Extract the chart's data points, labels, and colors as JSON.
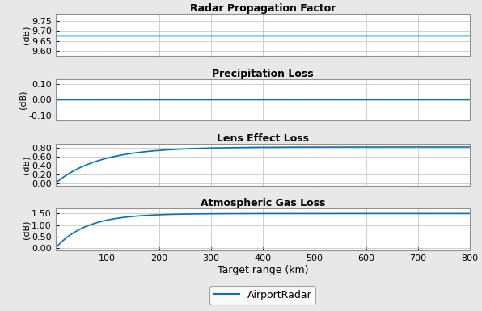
{
  "title1": "Radar Propagation Factor",
  "title2": "Precipitation Loss",
  "title3": "Lens Effect Loss",
  "title4": "Atmospheric Gas Loss",
  "xlabel": "Target range (km)",
  "ylabel": "(dB)",
  "legend_label": "AirportRadar",
  "xmin": 0,
  "xmax": 800,
  "line_color": "#0072BD",
  "background_color": "#E8E8E8",
  "axes_bg_color": "#FFFFFF",
  "grid_color": "#C8C8C8",
  "subplot1_ylim": [
    9.575,
    9.785
  ],
  "subplot1_yticks": [
    9.6,
    9.65,
    9.7,
    9.75
  ],
  "subplot2_ylim": [
    -0.135,
    0.135
  ],
  "subplot2_yticks": [
    -0.1,
    0.0,
    0.1
  ],
  "subplot3_ylim": [
    -0.055,
    0.895
  ],
  "subplot3_yticks": [
    0.0,
    0.2,
    0.4,
    0.6,
    0.8
  ],
  "subplot4_ylim": [
    -0.1,
    1.72
  ],
  "subplot4_yticks": [
    0.0,
    0.5,
    1.0,
    1.5
  ],
  "xticks": [
    100,
    200,
    300,
    400,
    500,
    600,
    700,
    800
  ],
  "title_fontsize": 9,
  "label_fontsize": 8,
  "tick_fontsize": 8
}
